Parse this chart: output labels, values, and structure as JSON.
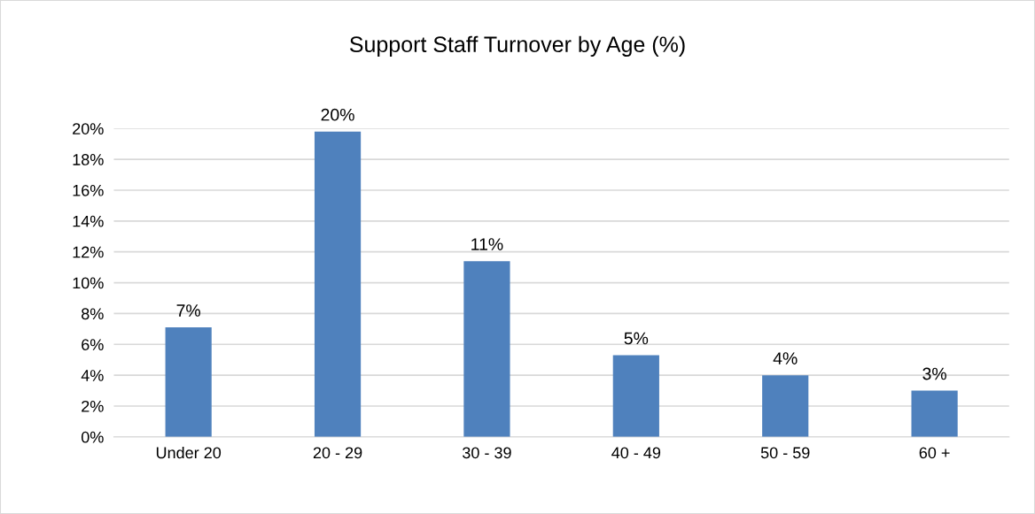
{
  "chart_data": {
    "type": "bar",
    "title": "Support Staff Turnover by Age (%)",
    "categories": [
      "Under 20",
      "20 - 29",
      "30 - 39",
      "40 - 49",
      "50 - 59",
      "60 +"
    ],
    "values": [
      7.1,
      19.8,
      11.4,
      5.3,
      4.0,
      3.0
    ],
    "value_labels": [
      "7%",
      "20%",
      "11%",
      "5%",
      "4%",
      "3%"
    ],
    "color": "#4f81bd",
    "ylim": [
      0,
      20
    ],
    "yticks": [
      {
        "value": 0,
        "label": "0%"
      },
      {
        "value": 2,
        "label": "2%"
      },
      {
        "value": 4,
        "label": "4%"
      },
      {
        "value": 6,
        "label": "6%"
      },
      {
        "value": 8,
        "label": "8%"
      },
      {
        "value": 10,
        "label": "10%"
      },
      {
        "value": 12,
        "label": "12%"
      },
      {
        "value": 14,
        "label": "14%"
      },
      {
        "value": 16,
        "label": "16%"
      },
      {
        "value": 18,
        "label": "18%"
      },
      {
        "value": 20,
        "label": "20%"
      }
    ],
    "grid": "y"
  }
}
